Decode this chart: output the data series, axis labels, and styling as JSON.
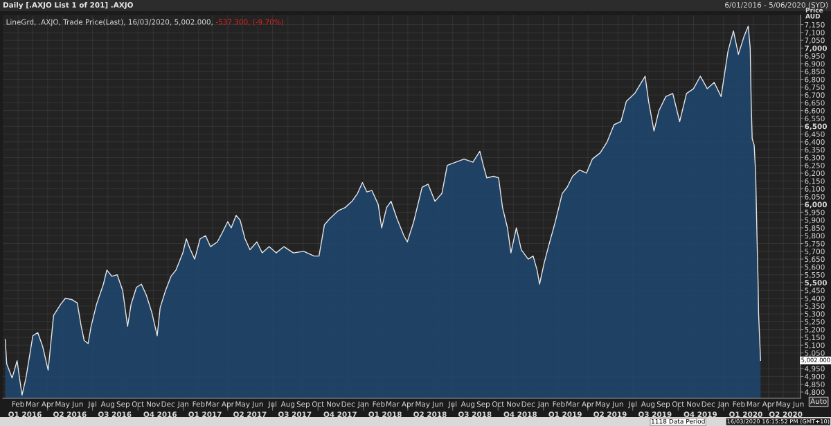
{
  "chart_data": {
    "type": "area",
    "title": "Daily [.AXJO List 1 of 201] .AXJO",
    "subtitle": "LineGrd, .AXJO, Trade Price(Last), 16/03/2020, 5,002.000,",
    "ylabel": "Price\nAUD",
    "annotations": [
      "-537.300, (-9.70%)",
      "5,002.000",
      "6/01/2016 - 5/06/2020 (SYD)",
      "1118 Data Period",
      "16/03/2020 16:15:52 PM (GMT+10)",
      "Auto"
    ],
    "x": [
      "2016-01-06",
      "2016-01-09",
      "2016-01-20",
      "2016-01-30",
      "2016-02-09",
      "2016-02-17",
      "2016-03-02",
      "2016-03-12",
      "2016-03-22",
      "2016-04-02",
      "2016-04-13",
      "2016-04-27",
      "2016-05-07",
      "2016-05-21",
      "2016-05-31",
      "2016-06-08",
      "2016-06-14",
      "2016-06-22",
      "2016-06-28",
      "2016-07-09",
      "2016-07-23",
      "2016-07-30",
      "2016-08-09",
      "2016-08-20",
      "2016-08-31",
      "2016-09-10",
      "2016-09-17",
      "2016-09-28",
      "2016-10-08",
      "2016-10-18",
      "2016-10-29",
      "2016-11-09",
      "2016-11-15",
      "2016-11-26",
      "2016-12-07",
      "2016-12-17",
      "2016-12-31",
      "2017-01-07",
      "2017-01-14",
      "2017-01-24",
      "2017-02-04",
      "2017-02-15",
      "2017-02-25",
      "2017-03-11",
      "2017-03-21",
      "2017-04-01",
      "2017-04-08",
      "2017-04-18",
      "2017-04-26",
      "2017-05-06",
      "2017-05-16",
      "2017-05-30",
      "2017-06-10",
      "2017-06-24",
      "2017-07-08",
      "2017-07-24",
      "2017-08-12",
      "2017-09-02",
      "2017-09-23",
      "2017-10-03",
      "2017-10-14",
      "2017-10-25",
      "2017-11-11",
      "2017-11-25",
      "2017-12-09",
      "2017-12-20",
      "2017-12-30",
      "2018-01-08",
      "2018-01-18",
      "2018-01-31",
      "2018-02-07",
      "2018-02-17",
      "2018-02-26",
      "2018-03-10",
      "2018-03-24",
      "2018-03-31",
      "2018-04-13",
      "2018-04-30",
      "2018-05-12",
      "2018-05-26",
      "2018-06-09",
      "2018-06-20",
      "2018-07-07",
      "2018-07-24",
      "2018-08-11",
      "2018-08-25",
      "2018-09-01",
      "2018-09-08",
      "2018-09-22",
      "2018-10-02",
      "2018-10-10",
      "2018-10-20",
      "2018-10-27",
      "2018-11-07",
      "2018-11-17",
      "2018-12-01",
      "2018-12-11",
      "2018-12-19",
      "2018-12-24",
      "2019-01-02",
      "2019-01-11",
      "2019-01-25",
      "2019-02-08",
      "2019-02-18",
      "2019-03-01",
      "2019-03-15",
      "2019-03-29",
      "2019-04-10",
      "2019-04-26",
      "2019-05-10",
      "2019-05-24",
      "2019-06-07",
      "2019-06-18",
      "2019-07-05",
      "2019-07-26",
      "2019-08-02",
      "2019-08-13",
      "2019-08-23",
      "2019-09-06",
      "2019-09-20",
      "2019-10-04",
      "2019-10-18",
      "2019-11-01",
      "2019-11-15",
      "2019-11-29",
      "2019-12-13",
      "2019-12-27",
      "2020-01-10",
      "2020-01-21",
      "2020-01-31",
      "2020-02-11",
      "2020-02-20",
      "2020-02-24",
      "2020-02-26",
      "2020-02-28",
      "2020-03-03",
      "2020-03-06",
      "2020-03-09",
      "2020-03-11",
      "2020-03-12",
      "2020-03-16"
    ],
    "series": [
      {
        "color": "#e6e6e6",
        "values": [
          5136,
          4980,
          4890,
          5000,
          4780,
          4890,
          5160,
          5180,
          5090,
          4940,
          5290,
          5360,
          5400,
          5390,
          5370,
          5220,
          5130,
          5110,
          5220,
          5360,
          5490,
          5580,
          5540,
          5550,
          5450,
          5220,
          5360,
          5470,
          5490,
          5420,
          5310,
          5160,
          5340,
          5450,
          5540,
          5580,
          5690,
          5780,
          5720,
          5650,
          5780,
          5800,
          5730,
          5760,
          5820,
          5890,
          5850,
          5930,
          5900,
          5780,
          5710,
          5760,
          5690,
          5730,
          5690,
          5730,
          5690,
          5700,
          5670,
          5670,
          5870,
          5910,
          5960,
          5980,
          6020,
          6070,
          6140,
          6080,
          6090,
          6000,
          5850,
          5980,
          6020,
          5910,
          5800,
          5760,
          5890,
          6110,
          6130,
          6020,
          6070,
          6250,
          6270,
          6290,
          6270,
          6340,
          6250,
          6170,
          6180,
          6170,
          5980,
          5850,
          5690,
          5850,
          5710,
          5650,
          5670,
          5580,
          5490,
          5620,
          5730,
          5890,
          6070,
          6110,
          6180,
          6220,
          6200,
          6290,
          6330,
          6400,
          6510,
          6530,
          6660,
          6710,
          6820,
          6660,
          6470,
          6600,
          6690,
          6710,
          6530,
          6710,
          6740,
          6820,
          6740,
          6780,
          6690,
          6980,
          7110,
          6960,
          7070,
          7140,
          7000,
          6650,
          6420,
          6380,
          6200,
          5760,
          5500,
          5300,
          5002
        ]
      }
    ],
    "xlim": [
      "2016-01-01",
      "2020-06-05"
    ],
    "x2lim": [
      "2016-01-01",
      "2020-06-05"
    ],
    "xticks": [
      {
        "value": "2016-02-01",
        "label": "Feb"
      },
      {
        "value": "2016-03-01",
        "label": "Mar"
      },
      {
        "value": "2016-04-01",
        "label": "Apr"
      },
      {
        "value": "2016-05-01",
        "label": "May"
      },
      {
        "value": "2016-06-01",
        "label": "Jun"
      },
      {
        "value": "2016-07-01",
        "label": "Jul"
      },
      {
        "value": "2016-08-01",
        "label": "Aug"
      },
      {
        "value": "2016-09-01",
        "label": "Sep"
      },
      {
        "value": "2016-10-01",
        "label": "Oct"
      },
      {
        "value": "2016-11-01",
        "label": "Nov"
      },
      {
        "value": "2016-12-01",
        "label": "Dec"
      },
      {
        "value": "2017-01-01",
        "label": "Jan"
      },
      {
        "value": "2017-02-01",
        "label": "Feb"
      },
      {
        "value": "2017-03-01",
        "label": "Mar"
      },
      {
        "value": "2017-04-01",
        "label": "Apr"
      },
      {
        "value": "2017-05-01",
        "label": "May"
      },
      {
        "value": "2017-06-01",
        "label": "Jun"
      },
      {
        "value": "2017-07-01",
        "label": "Jul"
      },
      {
        "value": "2017-08-01",
        "label": "Aug"
      },
      {
        "value": "2017-09-01",
        "label": "Sep"
      },
      {
        "value": "2017-10-01",
        "label": "Oct"
      },
      {
        "value": "2017-11-01",
        "label": "Nov"
      },
      {
        "value": "2017-12-01",
        "label": "Dec"
      },
      {
        "value": "2018-01-01",
        "label": "Jan"
      },
      {
        "value": "2018-02-01",
        "label": "Feb"
      },
      {
        "value": "2018-03-01",
        "label": "Mar"
      },
      {
        "value": "2018-04-01",
        "label": "Apr"
      },
      {
        "value": "2018-05-01",
        "label": "May"
      },
      {
        "value": "2018-06-01",
        "label": "Jun"
      },
      {
        "value": "2018-07-01",
        "label": "Jul"
      },
      {
        "value": "2018-08-01",
        "label": "Aug"
      },
      {
        "value": "2018-09-01",
        "label": "Sep"
      },
      {
        "value": "2018-10-01",
        "label": "Oct"
      },
      {
        "value": "2018-11-01",
        "label": "Nov"
      },
      {
        "value": "2018-12-01",
        "label": "Dec"
      },
      {
        "value": "2019-01-01",
        "label": "Jan"
      },
      {
        "value": "2019-02-01",
        "label": "Feb"
      },
      {
        "value": "2019-03-01",
        "label": "Mar"
      },
      {
        "value": "2019-04-01",
        "label": "Apr"
      },
      {
        "value": "2019-05-01",
        "label": "May"
      },
      {
        "value": "2019-06-01",
        "label": "Jun"
      },
      {
        "value": "2019-07-01",
        "label": "Jul"
      },
      {
        "value": "2019-08-01",
        "label": "Aug"
      },
      {
        "value": "2019-09-01",
        "label": "Sep"
      },
      {
        "value": "2019-10-01",
        "label": "Oct"
      },
      {
        "value": "2019-11-01",
        "label": "Nov"
      },
      {
        "value": "2019-12-01",
        "label": "Dec"
      },
      {
        "value": "2020-01-01",
        "label": "Jan"
      },
      {
        "value": "2020-02-01",
        "label": "Feb"
      },
      {
        "value": "2020-03-01",
        "label": "Mar"
      },
      {
        "value": "2020-04-01",
        "label": "Apr"
      },
      {
        "value": "2020-05-01",
        "label": "May"
      },
      {
        "value": "2020-06-01",
        "label": "Jun"
      }
    ],
    "x2ticks": [
      {
        "value": "2016-02-15",
        "label": "Q1 2016"
      },
      {
        "value": "2016-04-01",
        "label": null
      },
      {
        "value": "2016-05-16",
        "label": "Q2 2016"
      },
      {
        "value": "2016-07-01",
        "label": null
      },
      {
        "value": "2016-08-15",
        "label": "Q3 2016"
      },
      {
        "value": "2016-10-01",
        "label": null
      },
      {
        "value": "2016-11-15",
        "label": "Q4 2016"
      },
      {
        "value": "2017-01-01",
        "label": null
      },
      {
        "value": "2017-02-14",
        "label": "Q1 2017"
      },
      {
        "value": "2017-04-01",
        "label": null
      },
      {
        "value": "2017-05-16",
        "label": "Q2 2017"
      },
      {
        "value": "2017-07-01",
        "label": null
      },
      {
        "value": "2017-08-15",
        "label": "Q3 2017"
      },
      {
        "value": "2017-10-01",
        "label": null
      },
      {
        "value": "2017-11-15",
        "label": "Q4 2017"
      },
      {
        "value": "2018-01-01",
        "label": null
      },
      {
        "value": "2018-02-14",
        "label": "Q1 2018"
      },
      {
        "value": "2018-04-01",
        "label": null
      },
      {
        "value": "2018-05-16",
        "label": "Q2 2018"
      },
      {
        "value": "2018-07-01",
        "label": null
      },
      {
        "value": "2018-08-15",
        "label": "Q3 2018"
      },
      {
        "value": "2018-10-01",
        "label": null
      },
      {
        "value": "2018-11-15",
        "label": "Q4 2018"
      },
      {
        "value": "2019-01-01",
        "label": null
      },
      {
        "value": "2019-02-14",
        "label": "Q1 2019"
      },
      {
        "value": "2019-04-01",
        "label": null
      },
      {
        "value": "2019-05-16",
        "label": "Q2 2019"
      },
      {
        "value": "2019-07-01",
        "label": null
      },
      {
        "value": "2019-08-15",
        "label": "Q3 2019"
      },
      {
        "value": "2019-10-01",
        "label": null
      },
      {
        "value": "2019-11-15",
        "label": "Q4 2019"
      },
      {
        "value": "2020-01-01",
        "label": null
      },
      {
        "value": "2020-02-15",
        "label": "Q1 2020"
      },
      {
        "value": "2020-04-01",
        "label": null
      },
      {
        "value": "2020-05-06",
        "label": "Q2 2020"
      }
    ],
    "ylim": [
      4760,
      7210
    ],
    "yticks": [
      {
        "value": 4800,
        "label": "4,800"
      },
      {
        "value": 4850,
        "label": "4,850"
      },
      {
        "value": 4900,
        "label": "4,900"
      },
      {
        "value": 4950,
        "label": "4,950"
      },
      {
        "value": 5050,
        "label": "5,050"
      },
      {
        "value": 5100,
        "label": "5,100"
      },
      {
        "value": 5150,
        "label": "5,150"
      },
      {
        "value": 5200,
        "label": "5,200"
      },
      {
        "value": 5250,
        "label": "5,250"
      },
      {
        "value": 5300,
        "label": "5,300"
      },
      {
        "value": 5350,
        "label": "5,350"
      },
      {
        "value": 5400,
        "label": "5,400"
      },
      {
        "value": 5450,
        "label": "5,450"
      },
      {
        "value": 5500,
        "label": "5,500"
      },
      {
        "value": 5550,
        "label": "5,550"
      },
      {
        "value": 5600,
        "label": "5,600"
      },
      {
        "value": 5650,
        "label": "5,650"
      },
      {
        "value": 5700,
        "label": "5,700"
      },
      {
        "value": 5750,
        "label": "5,750"
      },
      {
        "value": 5800,
        "label": "5,800"
      },
      {
        "value": 5850,
        "label": "5,850"
      },
      {
        "value": 5900,
        "label": "5,900"
      },
      {
        "value": 5950,
        "label": "5,950"
      },
      {
        "value": 6000,
        "label": "6,000"
      },
      {
        "value": 6050,
        "label": "6,050"
      },
      {
        "value": 6100,
        "label": "6,100"
      },
      {
        "value": 6150,
        "label": "6,150"
      },
      {
        "value": 6200,
        "label": "6,200"
      },
      {
        "value": 6250,
        "label": "6,250"
      },
      {
        "value": 6300,
        "label": "6,300"
      },
      {
        "value": 6350,
        "label": "6,350"
      },
      {
        "value": 6400,
        "label": "6,400"
      },
      {
        "value": 6450,
        "label": "6,450"
      },
      {
        "value": 6500,
        "label": "6,500"
      },
      {
        "value": 6550,
        "label": "6,550"
      },
      {
        "value": 6600,
        "label": "6,600"
      },
      {
        "value": 6650,
        "label": "6,650"
      },
      {
        "value": 6700,
        "label": "6,700"
      },
      {
        "value": 6750,
        "label": "6,750"
      },
      {
        "value": 6800,
        "label": "6,800"
      },
      {
        "value": 6850,
        "label": "6,850"
      },
      {
        "value": 6900,
        "label": "6,900"
      },
      {
        "value": 6950,
        "label": "6,950"
      },
      {
        "value": 7000,
        "label": "7,000"
      },
      {
        "value": 7050,
        "label": "7,050"
      },
      {
        "value": 7100,
        "label": "7,100"
      },
      {
        "value": 7150,
        "label": "7,150"
      }
    ],
    "grid": true
  }
}
